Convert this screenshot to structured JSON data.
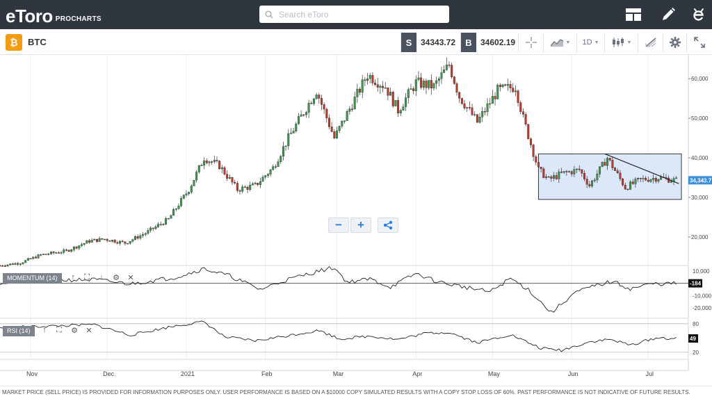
{
  "header": {
    "brand": "eToro",
    "product": "PROCHARTS",
    "search_placeholder": "Search eToro",
    "icons": [
      "layout-icon",
      "pencil-icon",
      "etoro-e-icon"
    ]
  },
  "toolbar": {
    "asset_symbol_glyph": "₿",
    "asset_name": "BTC",
    "sell_tag": "S",
    "sell_price": "34343.72",
    "buy_tag": "B",
    "buy_price": "34602.19",
    "interval": "1D"
  },
  "chart_data": [
    {
      "type": "candlestick",
      "title": "",
      "x_ticks": [
        "Nov",
        "Dec",
        "2021",
        "Feb",
        "Mar",
        "Apr",
        "May",
        "Jun",
        "Jul"
      ],
      "x_range": [
        "2020-10-20",
        "2021-07-14"
      ],
      "ylim": [
        13000,
        66000
      ],
      "y_ticks": [
        "60,000",
        "50,000",
        "40,000",
        "30,000",
        "20,000"
      ],
      "last_price_label": "34,343.7",
      "last_price": 34343.7,
      "close_series": [
        {
          "date": "2020-10-20",
          "value": 12800
        },
        {
          "date": "2020-10-28",
          "value": 13500
        },
        {
          "date": "2020-11-05",
          "value": 15500
        },
        {
          "date": "2020-11-15",
          "value": 16500
        },
        {
          "date": "2020-11-24",
          "value": 19000
        },
        {
          "date": "2020-11-30",
          "value": 19500
        },
        {
          "date": "2020-12-08",
          "value": 18500
        },
        {
          "date": "2020-12-16",
          "value": 21000
        },
        {
          "date": "2020-12-25",
          "value": 24500
        },
        {
          "date": "2021-01-02",
          "value": 32000
        },
        {
          "date": "2021-01-08",
          "value": 40000
        },
        {
          "date": "2021-01-14",
          "value": 38000
        },
        {
          "date": "2021-01-21",
          "value": 32000
        },
        {
          "date": "2021-01-28",
          "value": 33000
        },
        {
          "date": "2021-02-04",
          "value": 37500
        },
        {
          "date": "2021-02-10",
          "value": 45000
        },
        {
          "date": "2021-02-21",
          "value": 57000
        },
        {
          "date": "2021-02-28",
          "value": 45000
        },
        {
          "date": "2021-03-13",
          "value": 61000
        },
        {
          "date": "2021-03-20",
          "value": 58000
        },
        {
          "date": "2021-03-25",
          "value": 52000
        },
        {
          "date": "2021-04-01",
          "value": 59000
        },
        {
          "date": "2021-04-08",
          "value": 58000
        },
        {
          "date": "2021-04-14",
          "value": 63500
        },
        {
          "date": "2021-04-18",
          "value": 55500
        },
        {
          "date": "2021-04-25",
          "value": 49000
        },
        {
          "date": "2021-05-03",
          "value": 57000
        },
        {
          "date": "2021-05-10",
          "value": 58000
        },
        {
          "date": "2021-05-13",
          "value": 50000
        },
        {
          "date": "2021-05-19",
          "value": 37000
        },
        {
          "date": "2021-05-23",
          "value": 34500
        },
        {
          "date": "2021-05-28",
          "value": 36000
        },
        {
          "date": "2021-06-04",
          "value": 37000
        },
        {
          "date": "2021-06-08",
          "value": 33000
        },
        {
          "date": "2021-06-15",
          "value": 40000
        },
        {
          "date": "2021-06-22",
          "value": 32500
        },
        {
          "date": "2021-06-28",
          "value": 34500
        },
        {
          "date": "2021-07-05",
          "value": 35000
        },
        {
          "date": "2021-07-12",
          "value": 34300
        }
      ],
      "annotations": {
        "range_box": {
          "from": "2021-05-19",
          "to": "2021-07-14",
          "low": 29500,
          "high": 41000
        },
        "trendline": {
          "from": {
            "date": "2021-06-14",
            "value": 41000
          },
          "to": {
            "date": "2021-07-13",
            "value": 33500
          }
        }
      },
      "colors": {
        "up": "#3d9a4e",
        "down": "#c0392b",
        "box": "#dde7fa"
      }
    },
    {
      "type": "line",
      "indicator": "MOMENTUM (14)",
      "y_ticks": [
        "10,000",
        "-10,000",
        "-20,000"
      ],
      "ylim": [
        -28000,
        14000
      ],
      "last_value_label": "-184",
      "values": [
        {
          "date": "2020-10-20",
          "value": 500
        },
        {
          "date": "2020-11-10",
          "value": 2500
        },
        {
          "date": "2020-11-26",
          "value": 3000
        },
        {
          "date": "2020-12-10",
          "value": -500
        },
        {
          "date": "2020-12-28",
          "value": 5000
        },
        {
          "date": "2021-01-08",
          "value": 12000
        },
        {
          "date": "2021-01-18",
          "value": 6000
        },
        {
          "date": "2021-01-30",
          "value": -5000
        },
        {
          "date": "2021-02-08",
          "value": 2000
        },
        {
          "date": "2021-02-20",
          "value": 9000
        },
        {
          "date": "2021-02-28",
          "value": 13000
        },
        {
          "date": "2021-03-05",
          "value": 1000
        },
        {
          "date": "2021-03-14",
          "value": 3500
        },
        {
          "date": "2021-03-22",
          "value": -3000
        },
        {
          "date": "2021-04-01",
          "value": 8000
        },
        {
          "date": "2021-04-10",
          "value": 1000
        },
        {
          "date": "2021-04-20",
          "value": -3000
        },
        {
          "date": "2021-04-30",
          "value": -7000
        },
        {
          "date": "2021-05-08",
          "value": 4000
        },
        {
          "date": "2021-05-15",
          "value": -5000
        },
        {
          "date": "2021-05-24",
          "value": -24000
        },
        {
          "date": "2021-06-02",
          "value": -8000
        },
        {
          "date": "2021-06-10",
          "value": -2000
        },
        {
          "date": "2021-06-17",
          "value": 1500
        },
        {
          "date": "2021-06-24",
          "value": -4500
        },
        {
          "date": "2021-07-02",
          "value": -500
        },
        {
          "date": "2021-07-12",
          "value": -184
        }
      ]
    },
    {
      "type": "line",
      "indicator": "RSI (14)",
      "y_ticks": [
        "80",
        "20"
      ],
      "ylim": [
        5,
        90
      ],
      "last_value_label": "49",
      "values": [
        {
          "date": "2020-10-20",
          "value": 72
        },
        {
          "date": "2020-11-15",
          "value": 76
        },
        {
          "date": "2020-11-26",
          "value": 78
        },
        {
          "date": "2020-12-10",
          "value": 56
        },
        {
          "date": "2020-12-28",
          "value": 76
        },
        {
          "date": "2021-01-08",
          "value": 84
        },
        {
          "date": "2021-01-16",
          "value": 52
        },
        {
          "date": "2021-01-28",
          "value": 44
        },
        {
          "date": "2021-02-10",
          "value": 55
        },
        {
          "date": "2021-02-22",
          "value": 66
        },
        {
          "date": "2021-03-02",
          "value": 48
        },
        {
          "date": "2021-03-14",
          "value": 54
        },
        {
          "date": "2021-03-25",
          "value": 47
        },
        {
          "date": "2021-04-05",
          "value": 60
        },
        {
          "date": "2021-04-14",
          "value": 62
        },
        {
          "date": "2021-04-25",
          "value": 40
        },
        {
          "date": "2021-05-08",
          "value": 57
        },
        {
          "date": "2021-05-20",
          "value": 28
        },
        {
          "date": "2021-05-28",
          "value": 24
        },
        {
          "date": "2021-06-08",
          "value": 42
        },
        {
          "date": "2021-06-16",
          "value": 47
        },
        {
          "date": "2021-06-24",
          "value": 35
        },
        {
          "date": "2021-07-04",
          "value": 50
        },
        {
          "date": "2021-07-12",
          "value": 49
        }
      ],
      "overbought": 80,
      "oversold": 20
    }
  ],
  "panels": {
    "momentum_label": "MOMENTUM (14)",
    "rsi_label": "RSI (14)"
  },
  "zoom": {
    "minus": "−",
    "plus": "+"
  },
  "footer": {
    "disclaimer": "MARKET PRICE (SELL PRICE) IS PROVIDED FOR INFORMATION PURPOSES ONLY. USER PERFORMANCE IS BASED ON A $10000 COPY SIMULATED RESULTS WITH A COPY STOP LOSS OF 60%. PAST PERFORMANCE IS NOT INDICATIVE OF FUTURE RESULTS."
  }
}
